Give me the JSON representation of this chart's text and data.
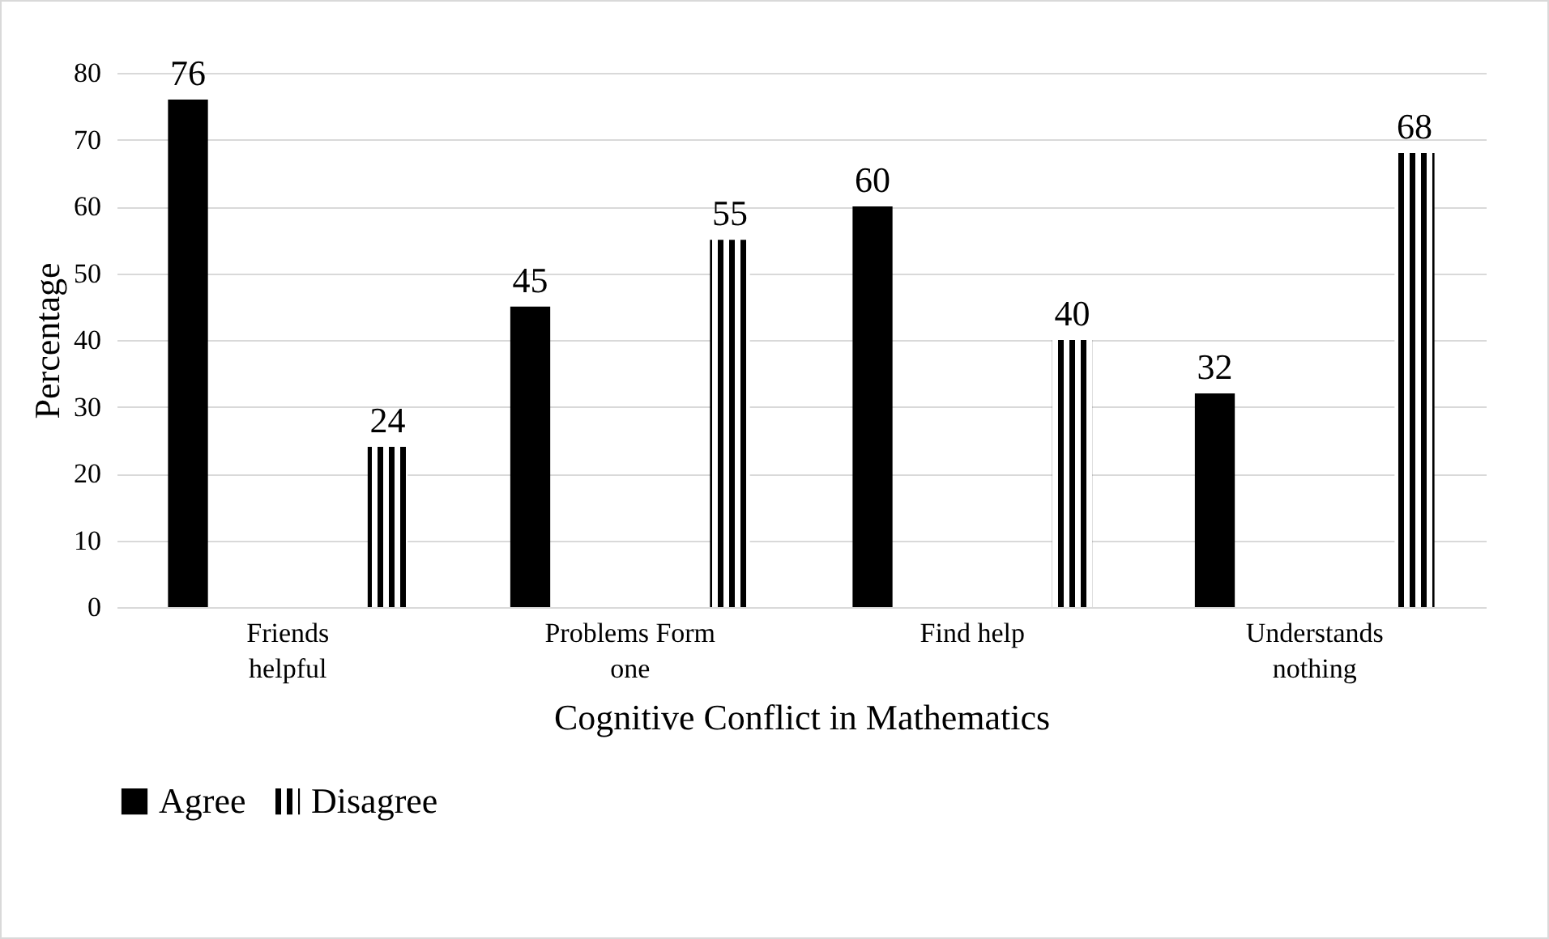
{
  "chart_data": {
    "type": "bar",
    "xlabel": "Cognitive Conflict in Mathematics",
    "ylabel": "Percentage",
    "categories": [
      "Friends helpful",
      "Problems Form one",
      "Find help",
      "Understands nothing"
    ],
    "series": [
      {
        "name": "Agree",
        "color": "#000000",
        "values": [
          76,
          45,
          60,
          32
        ]
      },
      {
        "name": "Disagree",
        "color": "#000000",
        "values": [
          24,
          55,
          40,
          68
        ]
      }
    ],
    "ylim": [
      0,
      80
    ],
    "yticks": [
      0,
      10,
      20,
      30,
      40,
      50,
      60,
      70,
      80
    ],
    "grid": "y",
    "legend": "bottom",
    "data_labels": true
  }
}
